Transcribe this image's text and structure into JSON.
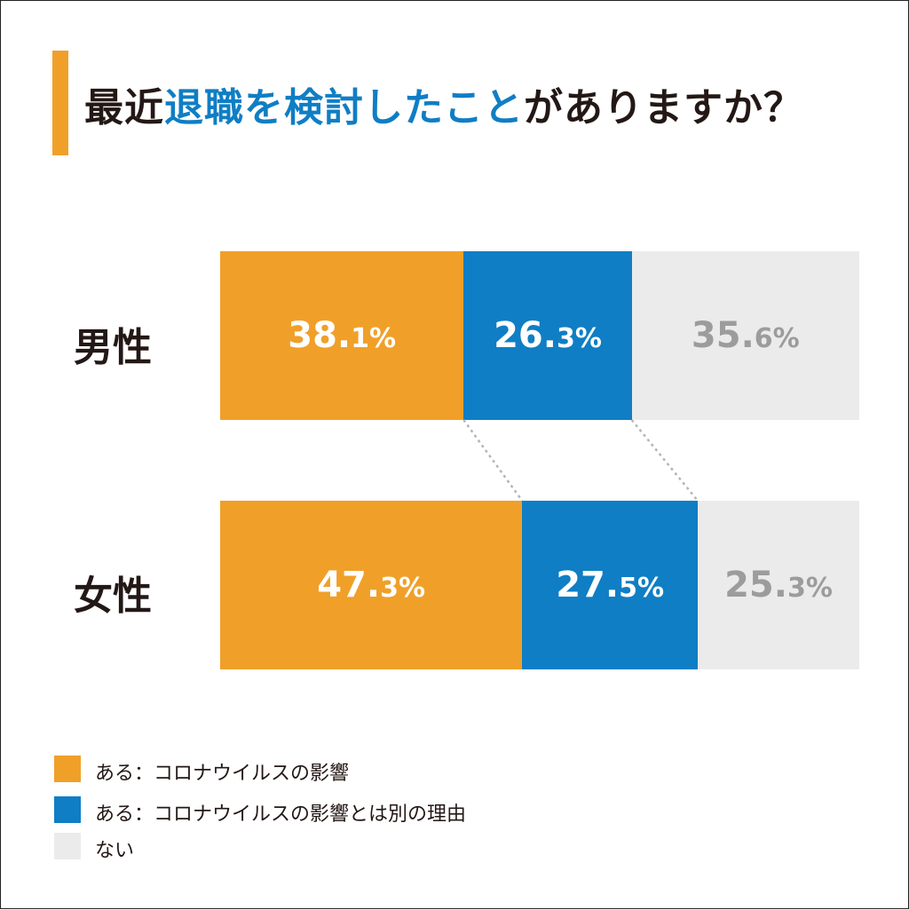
{
  "title": {
    "part1": "最近",
    "part2": "退職を検討したこと",
    "part3": "がありますか？"
  },
  "colors": {
    "orange": "#F0A028",
    "blue": "#0F7EC4",
    "gray": "#EBEBEB",
    "title_dark": "#231815",
    "label_gray": "#9C9C9C",
    "label_white": "#FFFFFF"
  },
  "chart_data": {
    "type": "bar",
    "orientation": "horizontal-stacked-100",
    "categories": [
      "男性",
      "女性"
    ],
    "series": [
      {
        "name": "ある：コロナウイルスの影響",
        "values": [
          38.1,
          47.3
        ]
      },
      {
        "name": "ある：コロナウイルスの影響とは別の理由",
        "values": [
          26.3,
          27.5
        ]
      },
      {
        "name": "ない",
        "values": [
          35.6,
          25.3
        ]
      }
    ],
    "labels": [
      [
        {
          "int": "38.",
          "dec": "1%"
        },
        {
          "int": "26.",
          "dec": "3%"
        },
        {
          "int": "35.",
          "dec": "6%"
        }
      ],
      [
        {
          "int": "47.",
          "dec": "3%"
        },
        {
          "int": "27.",
          "dec": "5%"
        },
        {
          "int": "25.",
          "dec": "3%"
        }
      ]
    ],
    "unit": "%",
    "legend": "bottom-left",
    "grid": false,
    "connector_lines": true
  },
  "legend": [
    {
      "label": "ある：コロナウイルスの影響",
      "color": "#F0A028"
    },
    {
      "label": "ある：コロナウイルスの影響とは別の理由",
      "color": "#0F7EC4"
    },
    {
      "label": "ない",
      "color": "#EBEBEB"
    }
  ]
}
